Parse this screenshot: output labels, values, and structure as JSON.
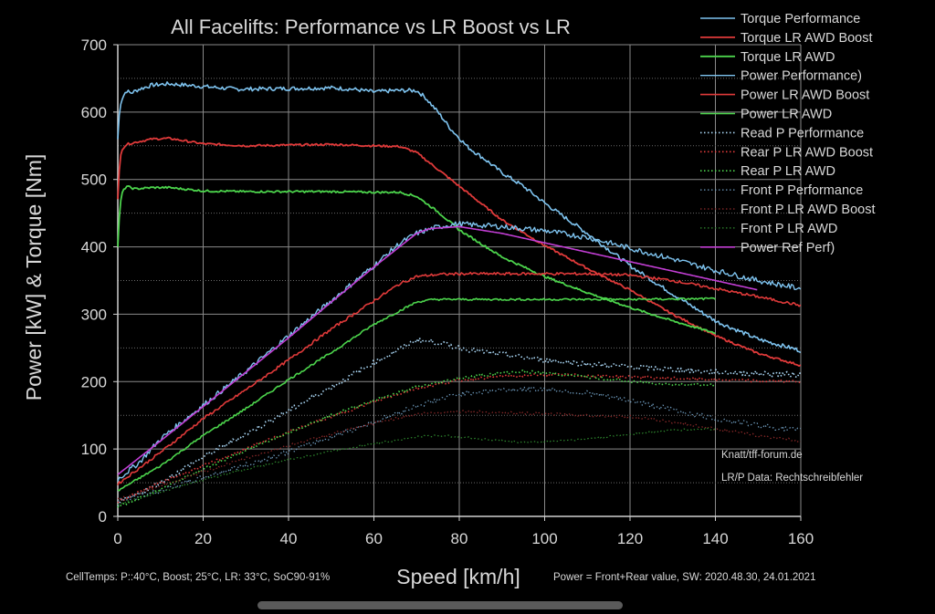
{
  "chart_data": {
    "type": "line",
    "title": "All Facelifts: Performance vs LR Boost vs LR",
    "xlabel": "Speed [km/h]",
    "ylabel": "Power [kW] & Torque [Nm]",
    "xlim": [
      0,
      160
    ],
    "ylim": [
      0,
      700
    ],
    "x_ticks": [
      0,
      20,
      40,
      60,
      80,
      100,
      120,
      140,
      160
    ],
    "y_ticks": [
      0,
      100,
      200,
      300,
      400,
      500,
      600,
      700
    ],
    "grid": true,
    "legend_position": "top-right",
    "annotations": [
      "Knatt/tff-forum.de",
      "LR/P Data: Rechtschreibfehler"
    ],
    "footer_left": "CellTemps: P::40°C, Boost; 25°C, LR: 33°C, SoC90-91%",
    "footer_right": "Power = Front+Rear value, SW: 2020.48.30, 24.01.2021",
    "series": [
      {
        "name": "Torque Performance",
        "color": "#7ec3ef",
        "style": "solid",
        "width": 1.6,
        "noise": 3,
        "points": [
          [
            0,
            560
          ],
          [
            0.5,
            610
          ],
          [
            1,
            620
          ],
          [
            2,
            632
          ],
          [
            3,
            628
          ],
          [
            5,
            634
          ],
          [
            8,
            640
          ],
          [
            12,
            642
          ],
          [
            20,
            638
          ],
          [
            28,
            634
          ],
          [
            40,
            635
          ],
          [
            50,
            636
          ],
          [
            55,
            634
          ],
          [
            60,
            630
          ],
          [
            65,
            632
          ],
          [
            70,
            632
          ],
          [
            72,
            622
          ],
          [
            75,
            600
          ],
          [
            78,
            575
          ],
          [
            82,
            548
          ],
          [
            86,
            530
          ],
          [
            90,
            510
          ],
          [
            95,
            490
          ],
          [
            100,
            465
          ],
          [
            110,
            420
          ],
          [
            120,
            372
          ],
          [
            130,
            330
          ],
          [
            140,
            290
          ],
          [
            150,
            263
          ],
          [
            160,
            246
          ]
        ]
      },
      {
        "name": "Torque LR AWD Boost",
        "color": "#e03a3a",
        "style": "solid",
        "width": 1.8,
        "noise": 1.5,
        "points": [
          [
            0,
            470
          ],
          [
            0.5,
            530
          ],
          [
            1,
            545
          ],
          [
            2,
            552
          ],
          [
            4,
            555
          ],
          [
            8,
            560
          ],
          [
            12,
            561
          ],
          [
            20,
            553
          ],
          [
            30,
            550
          ],
          [
            40,
            551
          ],
          [
            50,
            552
          ],
          [
            60,
            550
          ],
          [
            66,
            549
          ],
          [
            70,
            540
          ],
          [
            74,
            520
          ],
          [
            80,
            490
          ],
          [
            90,
            440
          ],
          [
            100,
            402
          ],
          [
            110,
            368
          ],
          [
            120,
            336
          ],
          [
            130,
            300
          ],
          [
            140,
            268
          ],
          [
            150,
            242
          ],
          [
            160,
            224
          ]
        ]
      },
      {
        "name": "Torque LR AWD",
        "color": "#4cd44c",
        "style": "solid",
        "width": 1.8,
        "noise": 1.5,
        "points": [
          [
            0,
            400
          ],
          [
            0.5,
            460
          ],
          [
            1,
            480
          ],
          [
            2,
            490
          ],
          [
            4,
            486
          ],
          [
            8,
            488
          ],
          [
            12,
            488
          ],
          [
            20,
            483
          ],
          [
            30,
            482
          ],
          [
            40,
            482
          ],
          [
            50,
            482
          ],
          [
            60,
            481
          ],
          [
            66,
            481
          ],
          [
            70,
            475
          ],
          [
            75,
            452
          ],
          [
            80,
            425
          ],
          [
            90,
            385
          ],
          [
            100,
            356
          ],
          [
            110,
            332
          ],
          [
            120,
            310
          ],
          [
            130,
            290
          ],
          [
            140,
            272
          ]
        ]
      },
      {
        "name": "Power Performance)",
        "color": "#7ec3ef",
        "style": "solid",
        "width": 1.4,
        "noise": 4,
        "points": [
          [
            0,
            55
          ],
          [
            5,
            80
          ],
          [
            10,
            115
          ],
          [
            20,
            165
          ],
          [
            30,
            215
          ],
          [
            40,
            268
          ],
          [
            50,
            320
          ],
          [
            60,
            372
          ],
          [
            66,
            405
          ],
          [
            70,
            420
          ],
          [
            74,
            428
          ],
          [
            78,
            433
          ],
          [
            80,
            434
          ],
          [
            85,
            432
          ],
          [
            90,
            430
          ],
          [
            95,
            427
          ],
          [
            100,
            424
          ],
          [
            110,
            414
          ],
          [
            120,
            398
          ],
          [
            130,
            382
          ],
          [
            140,
            365
          ],
          [
            150,
            350
          ],
          [
            160,
            338
          ]
        ]
      },
      {
        "name": "Power LR AWD Boost",
        "color": "#e03a3a",
        "style": "solid",
        "width": 1.6,
        "noise": 2,
        "points": [
          [
            0,
            48
          ],
          [
            10,
            95
          ],
          [
            20,
            145
          ],
          [
            30,
            188
          ],
          [
            40,
            232
          ],
          [
            50,
            278
          ],
          [
            60,
            320
          ],
          [
            66,
            345
          ],
          [
            70,
            356
          ],
          [
            75,
            359
          ],
          [
            80,
            360
          ],
          [
            90,
            360
          ],
          [
            100,
            360
          ],
          [
            110,
            360
          ],
          [
            120,
            358
          ],
          [
            130,
            350
          ],
          [
            140,
            338
          ],
          [
            150,
            326
          ],
          [
            160,
            313
          ]
        ]
      },
      {
        "name": "Power LR AWD",
        "color": "#4cd44c",
        "style": "solid",
        "width": 1.6,
        "noise": 1.5,
        "points": [
          [
            0,
            38
          ],
          [
            10,
            75
          ],
          [
            20,
            120
          ],
          [
            30,
            160
          ],
          [
            40,
            203
          ],
          [
            50,
            243
          ],
          [
            60,
            285
          ],
          [
            66,
            305
          ],
          [
            70,
            318
          ],
          [
            74,
            322
          ],
          [
            80,
            322
          ],
          [
            100,
            322
          ],
          [
            120,
            322
          ],
          [
            140,
            323
          ]
        ]
      },
      {
        "name": "Read P Performance",
        "color": "#a8d4f2",
        "style": "dotted",
        "width": 1.6,
        "noise": 4,
        "points": [
          [
            0,
            18
          ],
          [
            10,
            50
          ],
          [
            20,
            88
          ],
          [
            30,
            122
          ],
          [
            40,
            157
          ],
          [
            50,
            192
          ],
          [
            60,
            228
          ],
          [
            66,
            248
          ],
          [
            70,
            262
          ],
          [
            75,
            258
          ],
          [
            80,
            250
          ],
          [
            90,
            240
          ],
          [
            100,
            232
          ],
          [
            110,
            226
          ],
          [
            120,
            222
          ],
          [
            130,
            218
          ],
          [
            140,
            214
          ],
          [
            150,
            212
          ],
          [
            160,
            210
          ]
        ]
      },
      {
        "name": "Rear P LR AWD Boost",
        "color": "#e03a3a",
        "style": "dotted",
        "width": 1.6,
        "noise": 2,
        "points": [
          [
            0,
            22
          ],
          [
            10,
            50
          ],
          [
            20,
            75
          ],
          [
            30,
            100
          ],
          [
            40,
            125
          ],
          [
            50,
            148
          ],
          [
            60,
            170
          ],
          [
            70,
            190
          ],
          [
            80,
            202
          ],
          [
            90,
            208
          ],
          [
            100,
            210
          ],
          [
            110,
            209
          ],
          [
            120,
            207
          ],
          [
            130,
            205
          ],
          [
            140,
            203
          ],
          [
            150,
            201
          ],
          [
            160,
            200
          ]
        ]
      },
      {
        "name": "Rear P LR AWD",
        "color": "#4cd44c",
        "style": "dotted",
        "width": 1.6,
        "noise": 2,
        "points": [
          [
            0,
            14
          ],
          [
            10,
            40
          ],
          [
            20,
            70
          ],
          [
            30,
            98
          ],
          [
            40,
            125
          ],
          [
            50,
            150
          ],
          [
            60,
            172
          ],
          [
            70,
            192
          ],
          [
            80,
            205
          ],
          [
            90,
            213
          ],
          [
            95,
            215
          ],
          [
            100,
            213
          ],
          [
            110,
            207
          ],
          [
            120,
            200
          ],
          [
            130,
            196
          ],
          [
            140,
            195
          ]
        ]
      },
      {
        "name": "Front P Performance",
        "color": "#6f9cbf",
        "style": "dotted",
        "width": 1.2,
        "noise": 4,
        "points": [
          [
            0,
            22
          ],
          [
            10,
            38
          ],
          [
            20,
            58
          ],
          [
            30,
            76
          ],
          [
            40,
            96
          ],
          [
            50,
            118
          ],
          [
            60,
            140
          ],
          [
            70,
            164
          ],
          [
            80,
            182
          ],
          [
            90,
            188
          ],
          [
            100,
            189
          ],
          [
            110,
            183
          ],
          [
            120,
            172
          ],
          [
            130,
            158
          ],
          [
            140,
            145
          ],
          [
            150,
            135
          ],
          [
            160,
            127
          ]
        ]
      },
      {
        "name": "Front P LR AWD Boost",
        "color": "#8e2a2a",
        "style": "dotted",
        "width": 1.2,
        "noise": 2,
        "points": [
          [
            0,
            25
          ],
          [
            10,
            45
          ],
          [
            20,
            66
          ],
          [
            30,
            86
          ],
          [
            40,
            105
          ],
          [
            50,
            122
          ],
          [
            60,
            138
          ],
          [
            70,
            152
          ],
          [
            80,
            156
          ],
          [
            90,
            154
          ],
          [
            100,
            152
          ],
          [
            110,
            150
          ],
          [
            120,
            148
          ],
          [
            130,
            140
          ],
          [
            140,
            130
          ],
          [
            150,
            120
          ],
          [
            160,
            112
          ]
        ]
      },
      {
        "name": "Front P LR AWD",
        "color": "#2f8a2f",
        "style": "dotted",
        "width": 1.2,
        "noise": 1.5,
        "points": [
          [
            0,
            18
          ],
          [
            10,
            36
          ],
          [
            20,
            54
          ],
          [
            30,
            70
          ],
          [
            40,
            84
          ],
          [
            50,
            97
          ],
          [
            60,
            108
          ],
          [
            70,
            118
          ],
          [
            75,
            120
          ],
          [
            80,
            118
          ],
          [
            90,
            112
          ],
          [
            95,
            110
          ],
          [
            100,
            111
          ],
          [
            110,
            115
          ],
          [
            120,
            122
          ],
          [
            130,
            128
          ],
          [
            140,
            130
          ]
        ]
      },
      {
        "name": "Power Ref Perf)",
        "color": "#c23ed4",
        "style": "solid",
        "width": 1.6,
        "noise": 0,
        "points": [
          [
            0,
            62
          ],
          [
            10,
            112
          ],
          [
            20,
            163
          ],
          [
            30,
            214
          ],
          [
            40,
            265
          ],
          [
            50,
            318
          ],
          [
            60,
            370
          ],
          [
            70,
            420
          ],
          [
            73,
            427
          ],
          [
            80,
            430
          ],
          [
            90,
            420
          ],
          [
            100,
            406
          ],
          [
            110,
            392
          ],
          [
            120,
            378
          ],
          [
            130,
            364
          ],
          [
            140,
            350
          ],
          [
            150,
            336
          ]
        ]
      }
    ]
  }
}
